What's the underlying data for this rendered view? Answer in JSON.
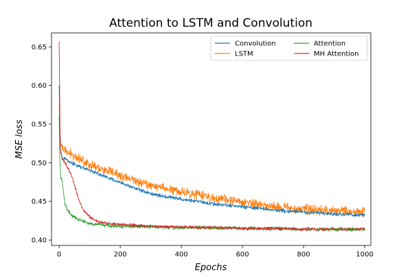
{
  "chart_data": {
    "type": "line",
    "title": "Attention to LSTM and Convolution",
    "xlabel": "Epochs",
    "ylabel": "MSE loss",
    "xlim": [
      -25,
      1020
    ],
    "ylim": [
      0.393,
      0.668
    ],
    "xticks": [
      0,
      200,
      400,
      600,
      800,
      1000
    ],
    "yticks": [
      0.4,
      0.45,
      0.5,
      0.55,
      0.6,
      0.65
    ],
    "grid": false,
    "legend_position": "top-right",
    "legend_columns": 2,
    "series": [
      {
        "name": "Convolution",
        "color": "#1f77b4",
        "x": [
          0,
          2,
          5,
          10,
          20,
          40,
          60,
          80,
          100,
          150,
          200,
          250,
          300,
          350,
          400,
          450,
          500,
          550,
          600,
          650,
          700,
          750,
          800,
          850,
          900,
          950,
          1000
        ],
        "y": [
          0.6,
          0.54,
          0.515,
          0.508,
          0.505,
          0.5,
          0.496,
          0.493,
          0.49,
          0.482,
          0.474,
          0.467,
          0.46,
          0.456,
          0.453,
          0.45,
          0.447,
          0.445,
          0.443,
          0.441,
          0.439,
          0.437,
          0.436,
          0.435,
          0.434,
          0.433,
          0.432
        ],
        "noise": 0.003
      },
      {
        "name": "LSTM",
        "color": "#ff7f0e",
        "x": [
          0,
          2,
          5,
          10,
          20,
          40,
          60,
          80,
          100,
          150,
          200,
          250,
          300,
          350,
          400,
          450,
          500,
          550,
          600,
          650,
          700,
          750,
          800,
          850,
          900,
          950,
          1000
        ],
        "y": [
          0.575,
          0.54,
          0.525,
          0.518,
          0.515,
          0.511,
          0.507,
          0.503,
          0.498,
          0.49,
          0.483,
          0.477,
          0.471,
          0.467,
          0.463,
          0.459,
          0.455,
          0.452,
          0.449,
          0.446,
          0.444,
          0.442,
          0.44,
          0.439,
          0.438,
          0.437,
          0.436
        ],
        "noise": 0.0075
      },
      {
        "name": "Attention",
        "color": "#2ca02c",
        "x": [
          0,
          2,
          5,
          10,
          20,
          30,
          40,
          60,
          80,
          100,
          150,
          200,
          300,
          400,
          500,
          600,
          700,
          800,
          900,
          1000
        ],
        "y": [
          0.56,
          0.51,
          0.48,
          0.475,
          0.445,
          0.438,
          0.432,
          0.427,
          0.424,
          0.421,
          0.419,
          0.418,
          0.417,
          0.416,
          0.416,
          0.415,
          0.415,
          0.414,
          0.414,
          0.414
        ],
        "noise": 0.003
      },
      {
        "name": "MH Attention",
        "color": "#d62728",
        "x": [
          0,
          1,
          3,
          5,
          10,
          20,
          30,
          40,
          50,
          60,
          70,
          80,
          100,
          120,
          150,
          200,
          300,
          400,
          500,
          600,
          700,
          800,
          900,
          1000
        ],
        "y": [
          0.657,
          0.62,
          0.54,
          0.515,
          0.505,
          0.5,
          0.492,
          0.484,
          0.472,
          0.458,
          0.446,
          0.438,
          0.43,
          0.425,
          0.422,
          0.42,
          0.418,
          0.417,
          0.416,
          0.415,
          0.415,
          0.414,
          0.414,
          0.414
        ],
        "noise": 0.0025
      }
    ]
  }
}
